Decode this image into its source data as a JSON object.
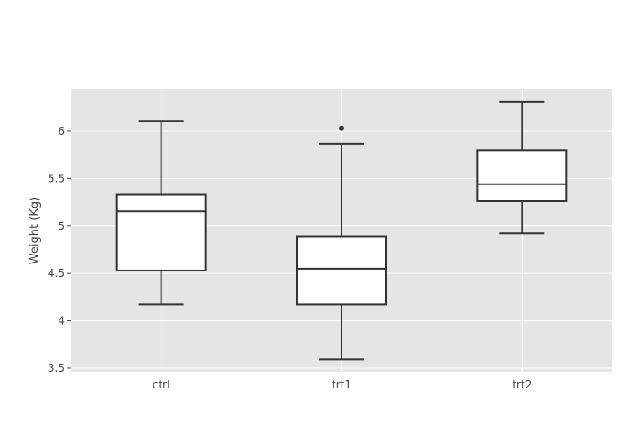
{
  "chart_data": {
    "type": "box",
    "title": "",
    "xlabel": "",
    "ylabel": "Weight (Kg)",
    "ylim": [
      3.453,
      6.449
    ],
    "yticks": [
      3.5,
      4,
      4.5,
      5,
      5.5,
      6
    ],
    "ytick_labels": [
      "3.5",
      "4",
      "4.5",
      "5",
      "5.5",
      "6"
    ],
    "grid": true,
    "colors": {
      "plot_bg": "#e5e5e5",
      "grid": "#ffffff",
      "box_fill": "#ffffff",
      "box_line": "#333333"
    },
    "categories": [
      "ctrl",
      "trt1",
      "trt2"
    ],
    "boxes": [
      {
        "category": "ctrl",
        "min": 4.17,
        "q1": 4.53,
        "median": 5.155,
        "q3": 5.33,
        "max": 6.11,
        "outliers": []
      },
      {
        "category": "trt1",
        "min": 3.59,
        "q1": 4.17,
        "median": 4.55,
        "q3": 4.89,
        "max": 5.87,
        "outliers": [
          6.03
        ]
      },
      {
        "category": "trt2",
        "min": 4.92,
        "q1": 5.26,
        "median": 5.44,
        "q3": 5.8,
        "max": 6.31,
        "outliers": []
      }
    ]
  }
}
